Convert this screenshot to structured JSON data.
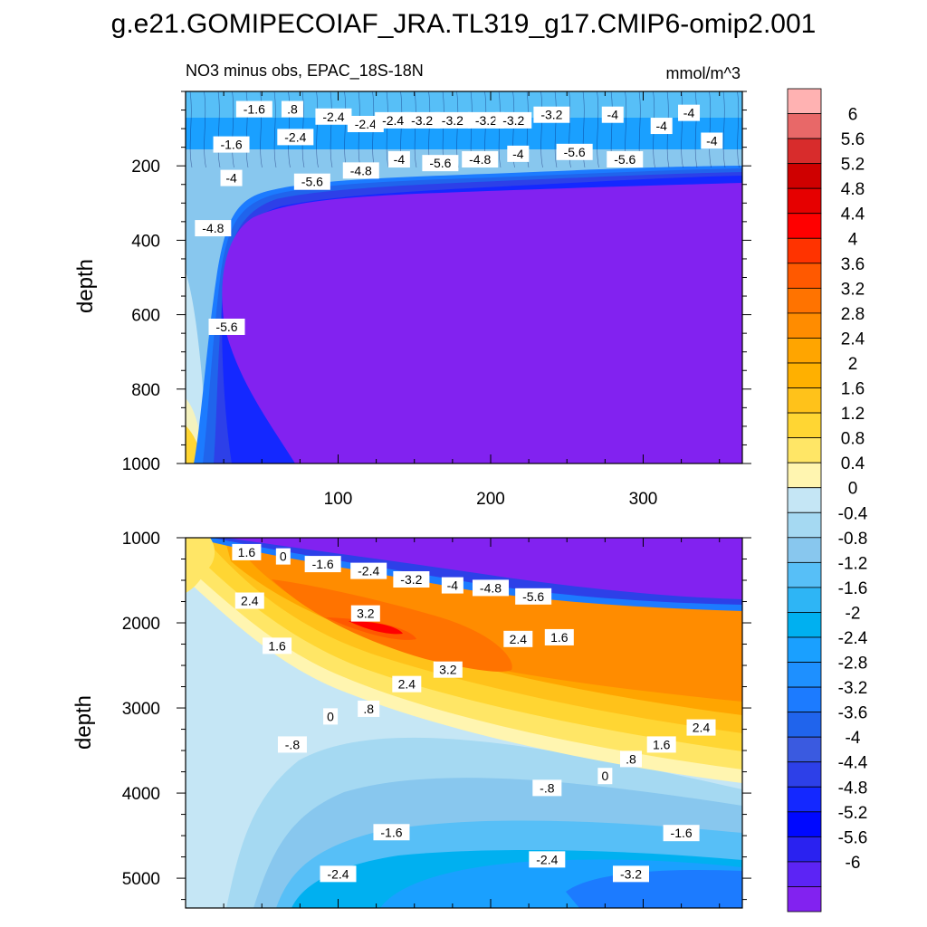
{
  "figure": {
    "title": "g.e21.GOMIPECOIAF_JRA.TL319_g17.CMIP6-omip2.001",
    "subtitle_left": "NO3 minus obs, EPAC_18S-18N",
    "subtitle_right": "mmol/m^3"
  },
  "chart_data": [
    {
      "type": "heatmap",
      "panel": "upper",
      "title": "NO3 minus obs, EPAC_18S-18N",
      "units": "mmol/m^3",
      "xlabel": "",
      "ylabel": "depth",
      "xlim": [
        0,
        365
      ],
      "ylim": [
        0,
        1000
      ],
      "y_reversed": true,
      "xticks": [
        100,
        200,
        300
      ],
      "yticks": [
        200,
        400,
        600,
        800,
        1000
      ],
      "contour_interval": 0.4,
      "contour_labels": [
        {
          "text": "-1.6",
          "x": 45,
          "y": 50
        },
        {
          "text": ".8",
          "x": 70,
          "y": 50
        },
        {
          "text": "-2.4",
          "x": 97,
          "y": 70
        },
        {
          "text": "-2.4",
          "x": 118,
          "y": 90
        },
        {
          "text": "-2.4",
          "x": 136,
          "y": 80
        },
        {
          "text": "-3.2",
          "x": 155,
          "y": 80
        },
        {
          "text": "-3.2",
          "x": 175,
          "y": 80
        },
        {
          "text": "-3.2",
          "x": 197,
          "y": 80
        },
        {
          "text": "-3.2",
          "x": 215,
          "y": 80
        },
        {
          "text": "-3.2",
          "x": 240,
          "y": 65
        },
        {
          "text": "-4",
          "x": 280,
          "y": 65
        },
        {
          "text": "-4",
          "x": 312,
          "y": 95
        },
        {
          "text": "-4",
          "x": 330,
          "y": 60
        },
        {
          "text": "-4",
          "x": 345,
          "y": 135
        },
        {
          "text": "-1.6",
          "x": 30,
          "y": 145
        },
        {
          "text": "-2.4",
          "x": 72,
          "y": 125
        },
        {
          "text": "-4",
          "x": 30,
          "y": 235
        },
        {
          "text": "-5.6",
          "x": 83,
          "y": 245
        },
        {
          "text": "-4.8",
          "x": 115,
          "y": 215
        },
        {
          "text": "-4",
          "x": 140,
          "y": 185
        },
        {
          "text": "-5.6",
          "x": 167,
          "y": 195
        },
        {
          "text": "-4.8",
          "x": 193,
          "y": 185
        },
        {
          "text": "-4",
          "x": 218,
          "y": 170
        },
        {
          "text": "-5.6",
          "x": 255,
          "y": 165
        },
        {
          "text": "-5.6",
          "x": 288,
          "y": 185
        },
        {
          "text": "-4.8",
          "x": 18,
          "y": 370
        },
        {
          "text": "-5.6",
          "x": 27,
          "y": 635
        }
      ]
    },
    {
      "type": "heatmap",
      "panel": "lower",
      "xlabel": "",
      "ylabel": "depth",
      "xlim": [
        0,
        365
      ],
      "ylim": [
        1000,
        5350
      ],
      "y_reversed": true,
      "xticks": [
        100,
        200,
        300
      ],
      "yticks": [
        1000,
        2000,
        3000,
        4000,
        5000
      ],
      "contour_interval": 0.4,
      "contour_labels": [
        {
          "text": "1.6",
          "x": 40,
          "y": 1180
        },
        {
          "text": "0",
          "x": 64,
          "y": 1230
        },
        {
          "text": "-1.6",
          "x": 90,
          "y": 1320
        },
        {
          "text": "-2.4",
          "x": 120,
          "y": 1400
        },
        {
          "text": "-3.2",
          "x": 148,
          "y": 1500
        },
        {
          "text": "-4",
          "x": 175,
          "y": 1570
        },
        {
          "text": "-4.8",
          "x": 200,
          "y": 1600
        },
        {
          "text": "-5.6",
          "x": 228,
          "y": 1700
        },
        {
          "text": "2.4",
          "x": 42,
          "y": 1750
        },
        {
          "text": "3.2",
          "x": 118,
          "y": 1900
        },
        {
          "text": "2.4",
          "x": 218,
          "y": 2200
        },
        {
          "text": "1.6",
          "x": 245,
          "y": 2180
        },
        {
          "text": "1.6",
          "x": 60,
          "y": 2280
        },
        {
          "text": "3.2",
          "x": 172,
          "y": 2560
        },
        {
          "text": "2.4",
          "x": 145,
          "y": 2730
        },
        {
          "text": ".8",
          "x": 120,
          "y": 3020
        },
        {
          "text": "0",
          "x": 95,
          "y": 3110
        },
        {
          "text": "2.4",
          "x": 338,
          "y": 3240
        },
        {
          "text": "1.6",
          "x": 312,
          "y": 3440
        },
        {
          "text": ".8",
          "x": 292,
          "y": 3610
        },
        {
          "text": "0",
          "x": 275,
          "y": 3810
        },
        {
          "text": "-.8",
          "x": 70,
          "y": 3440
        },
        {
          "text": "-.8",
          "x": 237,
          "y": 3950
        },
        {
          "text": "-1.6",
          "x": 135,
          "y": 4470
        },
        {
          "text": "-1.6",
          "x": 325,
          "y": 4480
        },
        {
          "text": "-2.4",
          "x": 237,
          "y": 4790
        },
        {
          "text": "-2.4",
          "x": 100,
          "y": 4960
        },
        {
          "text": "-3.2",
          "x": 292,
          "y": 4960
        }
      ]
    }
  ],
  "colorbar": {
    "colors": [
      "#ffb2b2",
      "#e86868",
      "#d82c2c",
      "#cf0000",
      "#e60000",
      "#ff0000",
      "#ff3300",
      "#ff5900",
      "#ff7300",
      "#ff8c00",
      "#ffa500",
      "#ffb000",
      "#ffc21a",
      "#ffd633",
      "#ffe666",
      "#fff5b0",
      "#c5e6f5",
      "#a5d9f2",
      "#88c7ee",
      "#57bff7",
      "#2eb5f5",
      "#00b0f0",
      "#1aa0ff",
      "#1e90ff",
      "#1c7bff",
      "#2064ec",
      "#3a5ae0",
      "#2d40e8",
      "#1428ff",
      "#0008ff",
      "#2a22f0",
      "#5c24f5",
      "#8222f0"
    ],
    "labels": [
      "6",
      "5.6",
      "5.2",
      "4.8",
      "4.4",
      "4",
      "3.6",
      "3.2",
      "2.8",
      "2.4",
      "2",
      "1.6",
      "1.2",
      "0.8",
      "0.4",
      "0",
      "-0.4",
      "-0.8",
      "-1.2",
      "-1.6",
      "-2",
      "-2.4",
      "-2.8",
      "-3.2",
      "-3.6",
      "-4",
      "-4.4",
      "-4.8",
      "-5.2",
      "-5.6",
      "-6"
    ]
  }
}
